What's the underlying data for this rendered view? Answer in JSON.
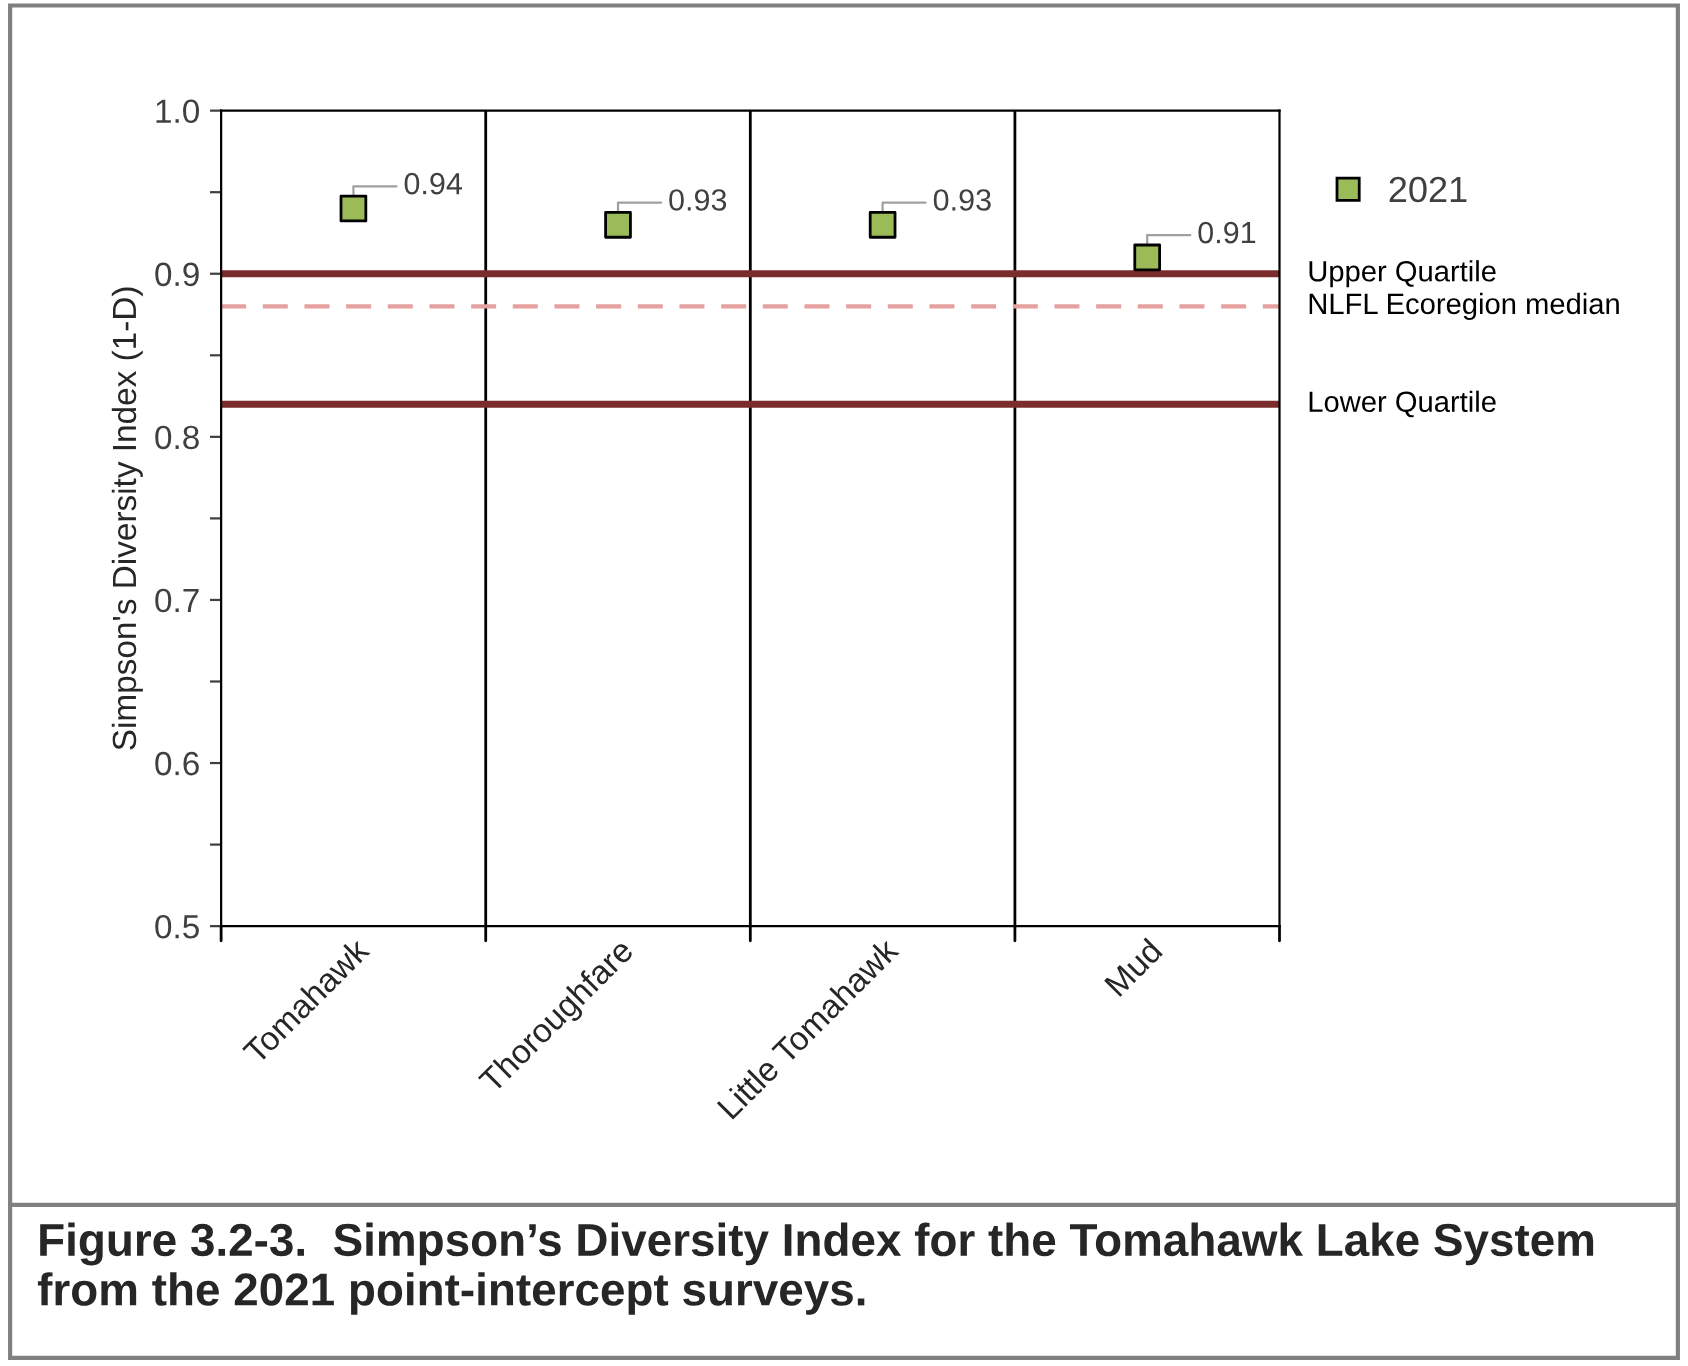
{
  "chart_data": {
    "type": "scatter",
    "ylabel": "Simpson's Diversity Index (1-D)",
    "categories": [
      "Tomahawk",
      "Thoroughfare",
      "Little Tomahawk",
      "Mud"
    ],
    "series": [
      {
        "name": "2021",
        "color": "#9bbb59",
        "values": [
          0.94,
          0.93,
          0.93,
          0.91
        ]
      }
    ],
    "ylim": [
      0.5,
      1.0
    ],
    "yticks": [
      0.5,
      {
        "value": 0.55,
        "label": null
      },
      0.6,
      {
        "value": 0.65,
        "label": null
      },
      0.7,
      {
        "value": 0.75,
        "label": null
      },
      0.8,
      {
        "value": 0.85,
        "label": null
      },
      0.9,
      {
        "value": 0.95,
        "label": null
      },
      {
        "value": 1.0,
        "label": "1.0"
      }
    ],
    "ref_lines": [
      {
        "axis": "y",
        "value": 0.9,
        "label": "Upper Quartile",
        "color": "#7b2c2c",
        "line_style": "solid"
      },
      {
        "axis": "y",
        "value": 0.88,
        "label": "NLFL Ecoregion median",
        "color": "#e6a0a0",
        "line_style": "dashed"
      },
      {
        "axis": "y",
        "value": 0.82,
        "label": "Lower Quartile",
        "color": "#7b2c2c",
        "line_style": "solid"
      }
    ],
    "data_labels": true,
    "marker": "square",
    "grid": "x",
    "legend": "top right",
    "annotations": [
      "Figure 3.2-3.  Simpson’s Diversity Index for the Tomahawk Lake System from the 2021 point-intercept surveys."
    ]
  }
}
